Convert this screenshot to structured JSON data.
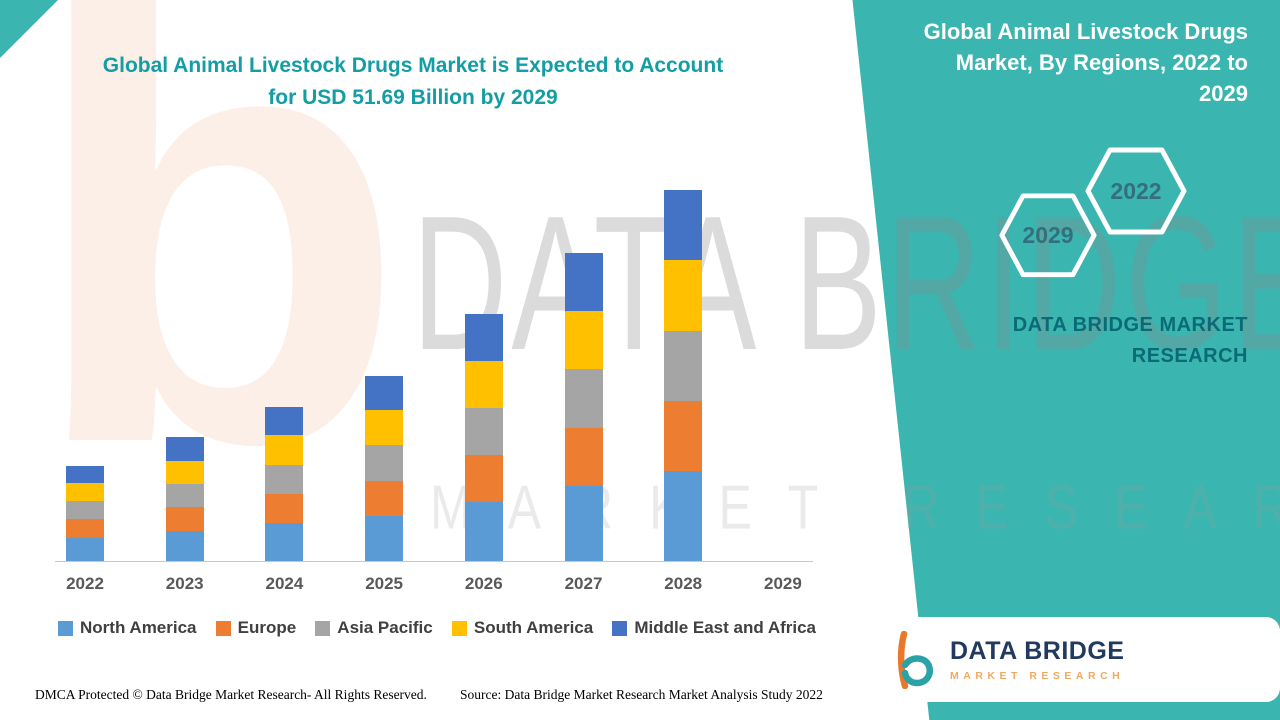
{
  "heading": {
    "line1": "Global Animal Livestock Drugs Market is Expected to Account",
    "line2": "for USD 51.69 Billion by 2029"
  },
  "side_panel": {
    "title_lines": [
      "Global Animal Livestock Drugs",
      "Market, By Regions, 2022 to",
      "2029"
    ],
    "badge_back_year": "2029",
    "badge_front_year": "2022",
    "brand_text": "DATA BRIDGE MARKET RESEARCH",
    "accent_color": "#3BB5B0"
  },
  "watermark": {
    "line1": "DATA BRIDGE",
    "line2": "MARKET RESEARCH",
    "letter": "b"
  },
  "footer": {
    "dmca": "DMCA Protected © Data Bridge Market Research- All Rights Reserved.",
    "source": "Source: Data Bridge Market Research Market Analysis Study 2022"
  },
  "logo_card": {
    "title": "DATA BRIDGE",
    "subtitle": "MARKET RESEARCH"
  },
  "chart_data": {
    "type": "bar",
    "stacked": true,
    "title": "Global Animal Livestock Drugs Market is Expected to Account for USD 51.69 Billion by 2029",
    "unit": "USD Billion",
    "values_note": "values estimated from bar heights; no bar drawn for 2029",
    "categories": [
      "2022",
      "2023",
      "2024",
      "2025",
      "2026",
      "2027",
      "2028",
      "2029"
    ],
    "series": [
      {
        "name": "North America",
        "color": "#5B9BD5",
        "values": [
          2.8,
          3.6,
          4.5,
          5.4,
          7.1,
          8.9,
          10.7,
          0
        ]
      },
      {
        "name": "Europe",
        "color": "#ED7D31",
        "values": [
          2.2,
          2.8,
          3.5,
          4.2,
          5.6,
          7.0,
          8.4,
          0
        ]
      },
      {
        "name": "Asia Pacific",
        "color": "#A5A5A5",
        "values": [
          2.2,
          2.8,
          3.5,
          4.2,
          5.6,
          7.0,
          8.4,
          0
        ]
      },
      {
        "name": "South America",
        "color": "#FFC000",
        "values": [
          2.1,
          2.8,
          3.5,
          4.2,
          5.6,
          7.0,
          8.4,
          0
        ]
      },
      {
        "name": "Middle East and Africa",
        "color": "#4472C4",
        "values": [
          2.1,
          2.8,
          3.4,
          4.1,
          5.6,
          6.9,
          8.4,
          0
        ]
      }
    ],
    "axis": {
      "y_visible": false,
      "gridlines": false
    },
    "legend_position": "bottom"
  }
}
